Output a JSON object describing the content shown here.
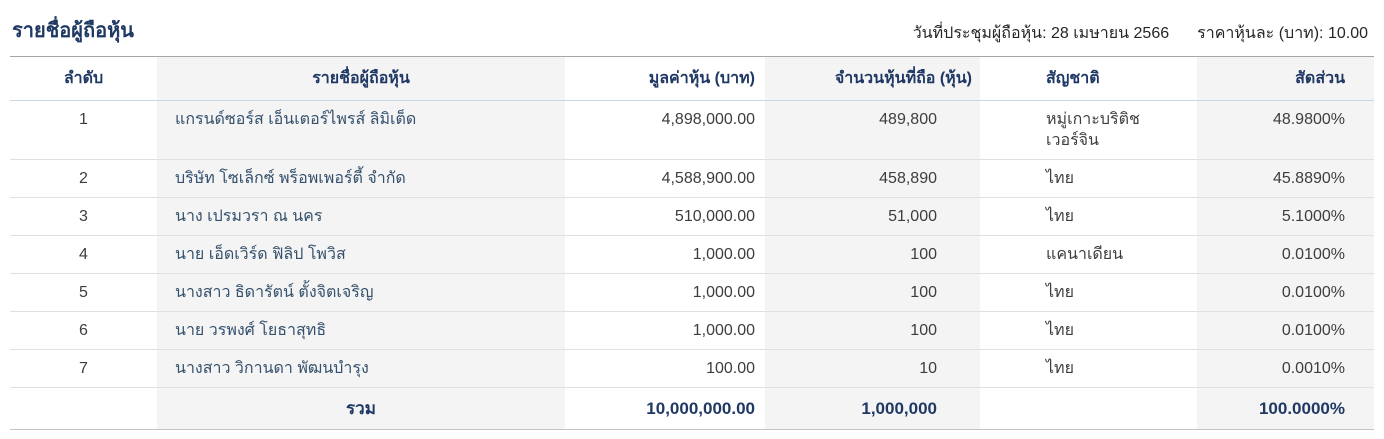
{
  "page": {
    "title": "รายชื่อผู้ถือหุ้น",
    "meeting_date_label": "วันที่ประชุมผู้ถือหุ้น:",
    "meeting_date_value": "28 เมษายน 2566",
    "price_per_share_label": "ราคาหุ้นละ (บาท):",
    "price_per_share_value": "10.00"
  },
  "table": {
    "headers": {
      "no": "ลำดับ",
      "name": "รายชื่อผู้ถือหุ้น",
      "value": "มูลค่าหุ้น (บาท)",
      "shares": "จำนวนหุ้นที่ถือ (หุ้น)",
      "nationality": "สัญชาติ",
      "proportion": "สัดส่วน"
    },
    "rows": [
      {
        "no": "1",
        "name": "แกรนด์ซอร์ส เอ็นเตอร์ไพรส์ ลิมิเต็ด",
        "value": "4,898,000.00",
        "shares": "489,800",
        "nationality": "หมู่เกาะบริติช เวอร์จิน",
        "proportion": "48.9800%"
      },
      {
        "no": "2",
        "name": "บริษัท โซเล็กซ์ พร็อพเพอร์ตี้ จำกัด",
        "value": "4,588,900.00",
        "shares": "458,890",
        "nationality": "ไทย",
        "proportion": "45.8890%"
      },
      {
        "no": "3",
        "name": "นาง เปรมวรา ณ นคร",
        "value": "510,000.00",
        "shares": "51,000",
        "nationality": "ไทย",
        "proportion": "5.1000%"
      },
      {
        "no": "4",
        "name": "นาย เอ็ดเวิร์ด ฟิลิป โพวิส",
        "value": "1,000.00",
        "shares": "100",
        "nationality": "แคนาเดียน",
        "proportion": "0.0100%"
      },
      {
        "no": "5",
        "name": "นางสาว ธิดารัตน์ ตั้งจิตเจริญ",
        "value": "1,000.00",
        "shares": "100",
        "nationality": "ไทย",
        "proportion": "0.0100%"
      },
      {
        "no": "6",
        "name": "นาย วรพงศ์ โยธาสุทธิ",
        "value": "1,000.00",
        "shares": "100",
        "nationality": "ไทย",
        "proportion": "0.0100%"
      },
      {
        "no": "7",
        "name": "นางสาว วิกานดา พัฒนบำรุง",
        "value": "100.00",
        "shares": "10",
        "nationality": "ไทย",
        "proportion": "0.0010%"
      }
    ],
    "total": {
      "label": "รวม",
      "value": "10,000,000.00",
      "shares": "1,000,000",
      "nationality": "",
      "proportion": "100.0000%"
    }
  },
  "colors": {
    "heading_navy": "#1f3864",
    "body_text": "#3d3d3d",
    "stripe_gray": "#f4f4f4",
    "row_divider": "#e0e0e0",
    "header_divider": "#c9d6e3",
    "title_divider": "#a6a6a6"
  }
}
